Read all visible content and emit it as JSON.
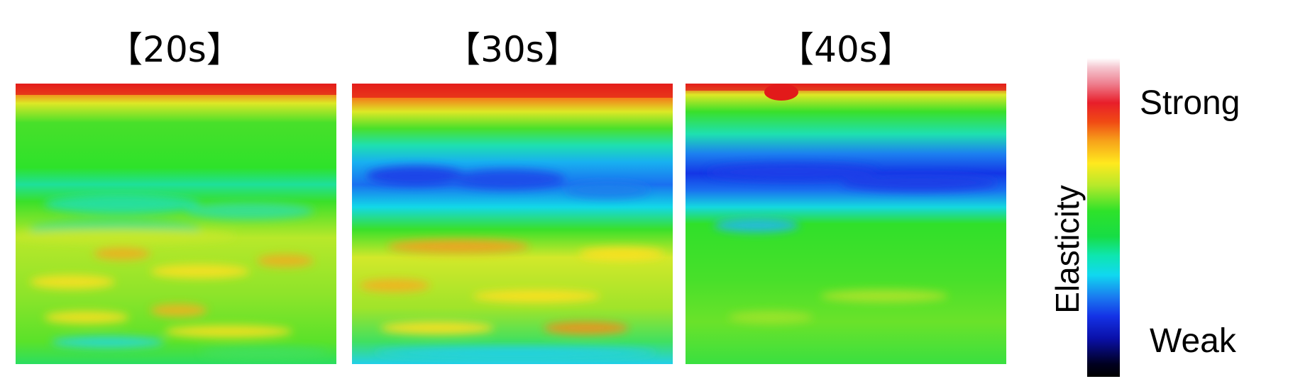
{
  "panels": [
    {
      "title": "【20s】",
      "weak_layer": "none"
    },
    {
      "title": "【30s】",
      "weak_layer": "moderate"
    },
    {
      "title": "【40s】",
      "weak_layer": "strong"
    }
  ],
  "colorbar": {
    "axis_label": "Elasticity",
    "top_label": "Strong",
    "bottom_label": "Weak",
    "colors": [
      "#ffffff",
      "#e81e2a",
      "#ffe91e",
      "#2ee22a",
      "#10d8f0",
      "#1432e6",
      "#000000"
    ]
  }
}
